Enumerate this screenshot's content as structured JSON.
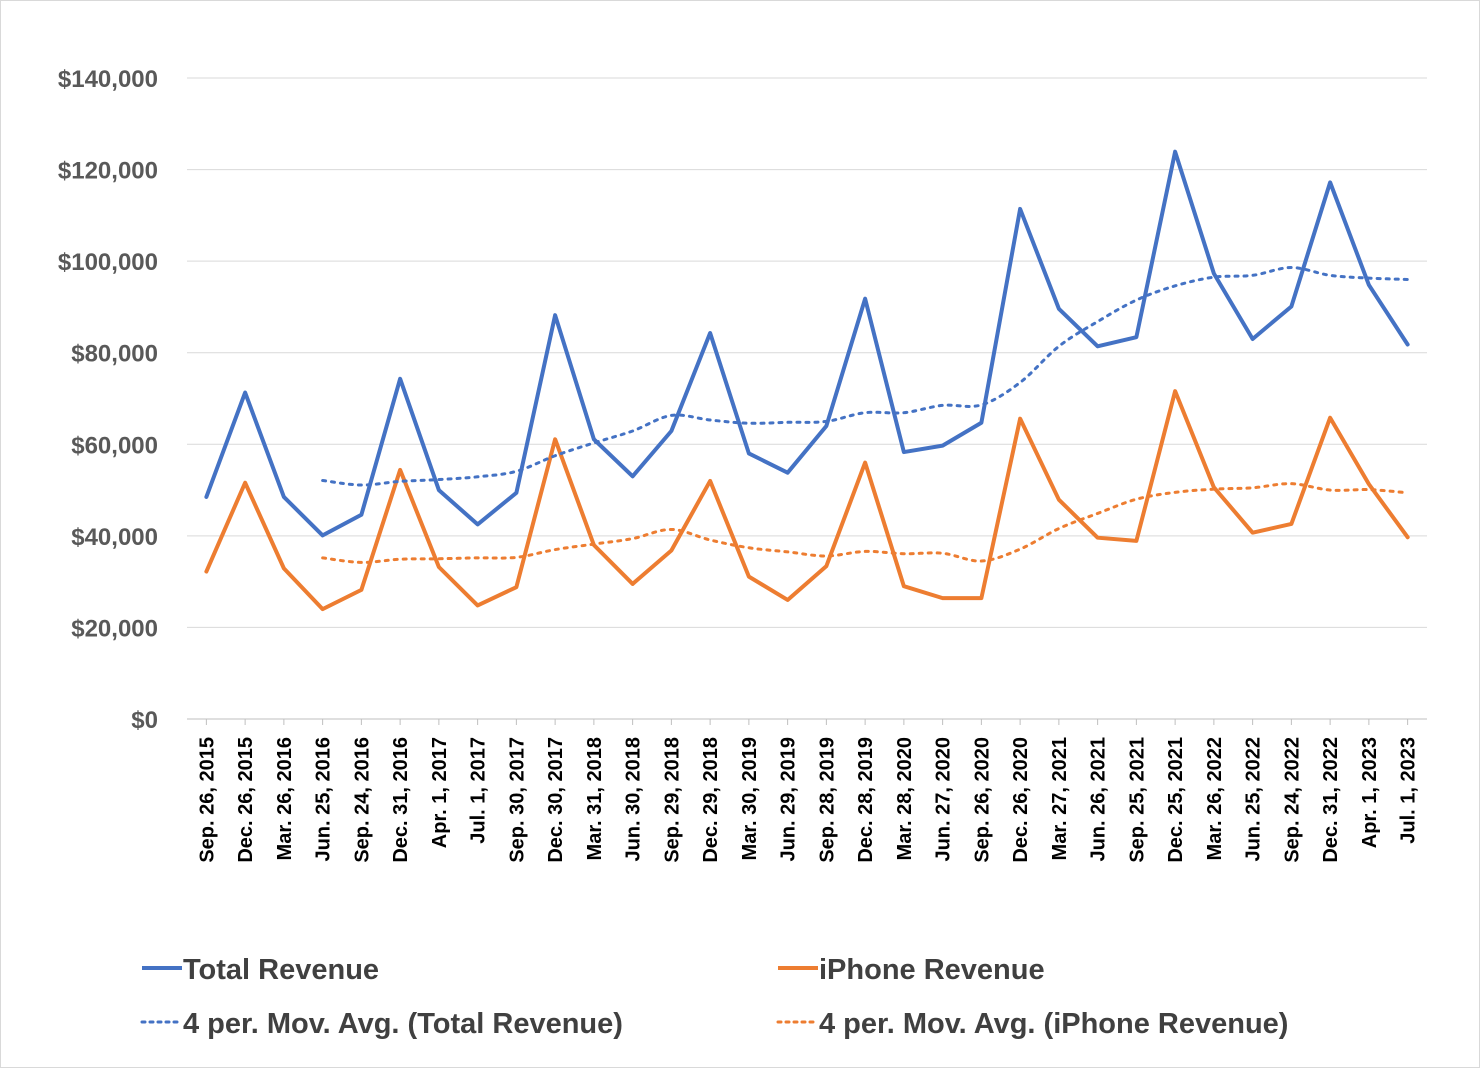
{
  "chart_data": {
    "type": "line",
    "title": "",
    "xlabel": "",
    "ylabel": "",
    "ylim": [
      0,
      140000
    ],
    "y_ticks": [
      0,
      20000,
      40000,
      60000,
      80000,
      100000,
      120000,
      140000
    ],
    "y_tick_labels": [
      "$0",
      "$20,000",
      "$40,000",
      "$60,000",
      "$80,000",
      "$100,000",
      "$120,000",
      "$140,000"
    ],
    "grid": "horizontal",
    "legend_position": "bottom",
    "categories": [
      "Sep. 26, 2015",
      "Dec. 26, 2015",
      "Mar. 26, 2016",
      "Jun. 25, 2016",
      "Sep. 24, 2016",
      "Dec. 31, 2016",
      "Apr. 1, 2017",
      "Jul. 1, 2017",
      "Sep. 30, 2017",
      "Dec. 30, 2017",
      "Mar. 31, 2018",
      "Jun. 30, 2018",
      "Sep. 29, 2018",
      "Dec. 29, 2018",
      "Mar. 30, 2019",
      "Jun. 29, 2019",
      "Sep. 28, 2019",
      "Dec. 28, 2019",
      "Mar. 28, 2020",
      "Jun. 27, 2020",
      "Sep. 26, 2020",
      "Dec. 26, 2020",
      "Mar. 27, 2021",
      "Jun. 26, 2021",
      "Sep. 25, 2021",
      "Dec. 25, 2021",
      "Mar. 26, 2022",
      "Jun. 25, 2022",
      "Sep. 24, 2022",
      "Dec. 31, 2022",
      "Apr. 1, 2023",
      "Jul. 1, 2023"
    ],
    "series": [
      {
        "name": "Total Revenue",
        "color": "#4472c4",
        "style": "solid",
        "values": [
          48500,
          71300,
          48500,
          40100,
          44600,
          74300,
          50000,
          42500,
          49400,
          88200,
          61100,
          53000,
          62900,
          84300,
          58000,
          53800,
          64000,
          91800,
          58300,
          59700,
          64700,
          111400,
          89600,
          81400,
          83400,
          123900,
          97300,
          83000,
          90100,
          117200,
          94800,
          81800
        ]
      },
      {
        "name": "iPhone Revenue",
        "color": "#ed7d31",
        "style": "solid",
        "values": [
          32200,
          51600,
          32900,
          24000,
          28200,
          54400,
          33200,
          24800,
          28800,
          61100,
          38000,
          29500,
          36800,
          52000,
          31100,
          26000,
          33400,
          56000,
          29000,
          26400,
          26400,
          65600,
          47900,
          39600,
          38900,
          71600,
          50600,
          40700,
          42600,
          65800,
          51300,
          39700
        ]
      },
      {
        "name": "4 per. Mov. Avg. (Total Revenue)",
        "color": "#4472c4",
        "style": "dotted",
        "values": [
          null,
          null,
          null,
          52100,
          51100,
          51900,
          52300,
          52900,
          54100,
          57500,
          60300,
          62900,
          66300,
          65300,
          64600,
          64800,
          65000,
          66900,
          66900,
          68500,
          68600,
          73500,
          81400,
          86800,
          91500,
          94600,
          96500,
          96900,
          98600,
          96900,
          96300,
          96000
        ]
      },
      {
        "name": "4 per. Mov. Avg. (iPhone Revenue)",
        "color": "#ed7d31",
        "style": "dotted",
        "values": [
          null,
          null,
          null,
          35200,
          34200,
          34900,
          35000,
          35200,
          35300,
          37000,
          38200,
          39400,
          41400,
          39100,
          37400,
          36500,
          35600,
          36600,
          36100,
          36200,
          34500,
          37100,
          41600,
          44900,
          48000,
          49500,
          50200,
          50500,
          51400,
          50000,
          50100,
          49400
        ]
      }
    ]
  }
}
